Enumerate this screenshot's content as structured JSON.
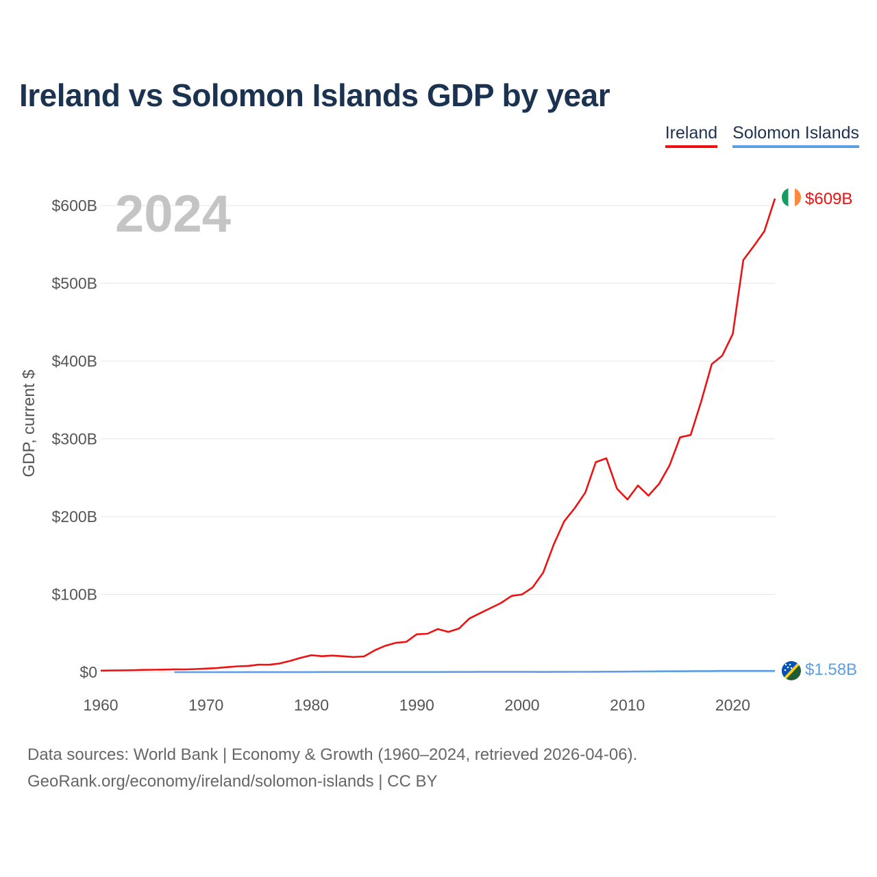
{
  "title": "Ireland vs Solomon Islands GDP by year",
  "legend": {
    "ireland": "Ireland",
    "solomon": "Solomon Islands"
  },
  "year_label": "2024",
  "footer": {
    "line1": "Data sources: World Bank | Economy & Growth (1960–2024, retrieved 2026-04-06).",
    "line2": "GeoRank.org/economy/ireland/solomon-islands | CC BY"
  },
  "colors": {
    "ireland": "#ee1111",
    "solomon": "#5b9ee6",
    "grid": "#e6e6e6",
    "year": "#c4c4c4"
  },
  "chart_data": {
    "type": "line",
    "title": "Ireland vs Solomon Islands GDP by year",
    "ylabel": "GDP, current $",
    "xlabel": "",
    "xlim": [
      1960,
      2024
    ],
    "ylim": [
      0,
      600
    ],
    "unit": "billions of current US$",
    "x_ticks": [
      "1960",
      "1970",
      "1980",
      "1990",
      "2000",
      "2010",
      "2020"
    ],
    "y_ticks": [
      "$0",
      "$100B",
      "$200B",
      "$300B",
      "$400B",
      "$500B",
      "$600B"
    ],
    "series": [
      {
        "name": "Ireland",
        "end_label": "$609B",
        "x": [
          1960,
          1961,
          1962,
          1963,
          1964,
          1965,
          1966,
          1967,
          1968,
          1969,
          1970,
          1971,
          1972,
          1973,
          1974,
          1975,
          1976,
          1977,
          1978,
          1979,
          1980,
          1981,
          1982,
          1983,
          1984,
          1985,
          1986,
          1987,
          1988,
          1989,
          1990,
          1991,
          1992,
          1993,
          1994,
          1995,
          1996,
          1997,
          1998,
          1999,
          2000,
          2001,
          2002,
          2003,
          2004,
          2005,
          2006,
          2007,
          2008,
          2009,
          2010,
          2011,
          2012,
          2013,
          2014,
          2015,
          2016,
          2017,
          2018,
          2019,
          2020,
          2021,
          2022,
          2023,
          2024
        ],
        "values": [
          1.9,
          2.1,
          2.3,
          2.5,
          2.9,
          3.1,
          3.3,
          3.6,
          3.5,
          4.0,
          4.6,
          5.2,
          6.4,
          7.5,
          8.0,
          9.6,
          9.5,
          11.2,
          14.5,
          18.5,
          21.8,
          20.5,
          21.3,
          20.4,
          19.5,
          20.3,
          28.0,
          33.8,
          37.7,
          38.9,
          48.7,
          49.3,
          55.4,
          51.7,
          56.0,
          69.0,
          75.7,
          82.4,
          89.0,
          98.0,
          100.0,
          109.0,
          128.0,
          164.0,
          194.0,
          211.0,
          231.0,
          270.0,
          275.0,
          236.0,
          222.0,
          240.0,
          227.0,
          242.0,
          266.0,
          302.0,
          305.0,
          348.0,
          396.0,
          407.0,
          435.0,
          530.0,
          548.0,
          567.0,
          609.0
        ]
      },
      {
        "name": "Solomon Islands",
        "end_label": "$1.58B",
        "x": [
          1967,
          1968,
          1969,
          1970,
          1971,
          1972,
          1973,
          1974,
          1975,
          1976,
          1977,
          1978,
          1979,
          1980,
          1981,
          1982,
          1983,
          1984,
          1985,
          1986,
          1987,
          1988,
          1989,
          1990,
          1991,
          1992,
          1993,
          1994,
          1995,
          1996,
          1997,
          1998,
          1999,
          2000,
          2001,
          2002,
          2003,
          2004,
          2005,
          2006,
          2007,
          2008,
          2009,
          2010,
          2011,
          2012,
          2013,
          2014,
          2015,
          2016,
          2017,
          2018,
          2019,
          2020,
          2021,
          2022,
          2023,
          2024
        ],
        "values": [
          0.03,
          0.03,
          0.03,
          0.03,
          0.03,
          0.04,
          0.04,
          0.05,
          0.06,
          0.06,
          0.07,
          0.09,
          0.11,
          0.13,
          0.14,
          0.14,
          0.15,
          0.17,
          0.16,
          0.14,
          0.15,
          0.17,
          0.17,
          0.18,
          0.19,
          0.21,
          0.23,
          0.26,
          0.29,
          0.32,
          0.34,
          0.33,
          0.35,
          0.37,
          0.34,
          0.3,
          0.33,
          0.38,
          0.42,
          0.47,
          0.54,
          0.6,
          0.59,
          0.69,
          0.88,
          1.0,
          1.1,
          1.16,
          1.17,
          1.24,
          1.37,
          1.43,
          1.57,
          1.55,
          1.6,
          1.59,
          1.59,
          1.58
        ]
      }
    ]
  }
}
